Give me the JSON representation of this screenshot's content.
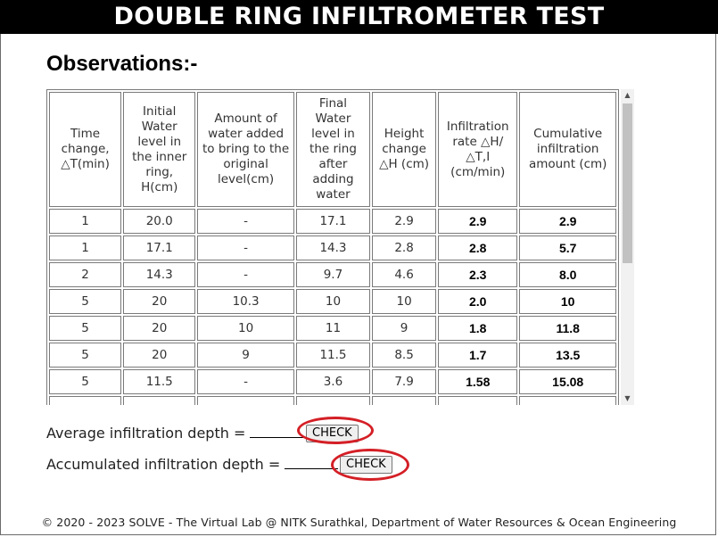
{
  "header": {
    "title": "DOUBLE RING INFILTROMETER TEST"
  },
  "section_title": "Observations:-",
  "table": {
    "headers": [
      "Time change, △T(min)",
      "Initial Water level in the inner ring, H(cm)",
      "Amount of water added to bring to the original level(cm)",
      "Final Water level in the ring after adding water",
      "Height change △H (cm)",
      "Infiltration rate △H/△T,I (cm/min)",
      "Cumulative infiltration amount (cm)"
    ],
    "rows": [
      [
        "1",
        "20.0",
        "-",
        "17.1",
        "2.9",
        "2.9",
        "2.9"
      ],
      [
        "1",
        "17.1",
        "-",
        "14.3",
        "2.8",
        "2.8",
        "5.7"
      ],
      [
        "2",
        "14.3",
        "-",
        "9.7",
        "4.6",
        "2.3",
        "8.0"
      ],
      [
        "5",
        "20",
        "10.3",
        "10",
        "10",
        "2.0",
        "10"
      ],
      [
        "5",
        "20",
        "10",
        "11",
        "9",
        "1.8",
        "11.8"
      ],
      [
        "5",
        "20",
        "9",
        "11.5",
        "8.5",
        "1.7",
        "13.5"
      ],
      [
        "5",
        "11.5",
        "-",
        "3.6",
        "7.9",
        "1.58",
        "15.08"
      ],
      [
        "",
        "",
        "",
        "",
        "",
        "",
        ""
      ]
    ]
  },
  "average": {
    "label": "Average infiltration depth =",
    "value": "",
    "button": "CHECK"
  },
  "accumulated": {
    "label": "Accumulated infiltration depth =",
    "value": "",
    "button": "CHECK"
  },
  "footer": {
    "text": "© 2020 - 2023 SOLVE - The Virtual Lab @ NITK Surathkal, Department of Water Resources & Ocean Engineering"
  },
  "colors": {
    "header_bg": "#000000",
    "highlight_ring": "#d41f26"
  },
  "scroll": {
    "scrolled_fraction": 0.0,
    "visible_fraction": 0.55
  }
}
